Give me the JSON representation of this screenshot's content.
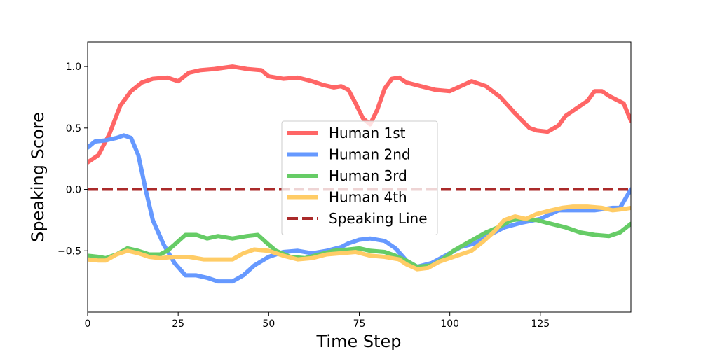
{
  "chart_data": {
    "type": "line",
    "xlabel": "Time Step",
    "ylabel": "Speaking Score",
    "xlim": [
      0,
      150
    ],
    "ylim": [
      -1.0,
      1.2
    ],
    "xticks": [
      0,
      25,
      50,
      75,
      100,
      125
    ],
    "yticks": [
      -0.5,
      0.0,
      0.5,
      1.0
    ],
    "xtick_labels": [
      "0",
      "25",
      "50",
      "75",
      "100",
      "125"
    ],
    "ytick_labels": [
      "−0.5",
      "0.0",
      "0.5",
      "1.0"
    ],
    "grid": false,
    "legend_position": "center",
    "series": [
      {
        "name": "Human 1st",
        "color": "#ff6666",
        "style": "solid",
        "points": [
          [
            0,
            0.22
          ],
          [
            3,
            0.28
          ],
          [
            6,
            0.45
          ],
          [
            9,
            0.68
          ],
          [
            12,
            0.8
          ],
          [
            15,
            0.87
          ],
          [
            18,
            0.9
          ],
          [
            22,
            0.91
          ],
          [
            25,
            0.88
          ],
          [
            28,
            0.95
          ],
          [
            31,
            0.97
          ],
          [
            35,
            0.98
          ],
          [
            40,
            1.0
          ],
          [
            44,
            0.98
          ],
          [
            48,
            0.97
          ],
          [
            50,
            0.92
          ],
          [
            54,
            0.9
          ],
          [
            58,
            0.91
          ],
          [
            62,
            0.88
          ],
          [
            65,
            0.85
          ],
          [
            68,
            0.83
          ],
          [
            70,
            0.84
          ],
          [
            72,
            0.81
          ],
          [
            74,
            0.7
          ],
          [
            76,
            0.58
          ],
          [
            78,
            0.53
          ],
          [
            80,
            0.65
          ],
          [
            82,
            0.82
          ],
          [
            84,
            0.9
          ],
          [
            86,
            0.91
          ],
          [
            88,
            0.87
          ],
          [
            92,
            0.84
          ],
          [
            96,
            0.81
          ],
          [
            100,
            0.8
          ],
          [
            103,
            0.84
          ],
          [
            106,
            0.88
          ],
          [
            110,
            0.84
          ],
          [
            114,
            0.75
          ],
          [
            118,
            0.62
          ],
          [
            122,
            0.5
          ],
          [
            124,
            0.48
          ],
          [
            127,
            0.47
          ],
          [
            130,
            0.52
          ],
          [
            132,
            0.6
          ],
          [
            135,
            0.66
          ],
          [
            138,
            0.72
          ],
          [
            140,
            0.8
          ],
          [
            142,
            0.8
          ],
          [
            144,
            0.76
          ],
          [
            148,
            0.7
          ],
          [
            150,
            0.56
          ]
        ]
      },
      {
        "name": "Human 2nd",
        "color": "#6699ff",
        "style": "solid",
        "points": [
          [
            0,
            0.34
          ],
          [
            2,
            0.39
          ],
          [
            5,
            0.4
          ],
          [
            8,
            0.42
          ],
          [
            10,
            0.44
          ],
          [
            12,
            0.42
          ],
          [
            14,
            0.28
          ],
          [
            16,
            0.0
          ],
          [
            18,
            -0.25
          ],
          [
            21,
            -0.45
          ],
          [
            24,
            -0.6
          ],
          [
            27,
            -0.7
          ],
          [
            30,
            -0.7
          ],
          [
            33,
            -0.72
          ],
          [
            36,
            -0.75
          ],
          [
            40,
            -0.75
          ],
          [
            43,
            -0.7
          ],
          [
            46,
            -0.62
          ],
          [
            50,
            -0.55
          ],
          [
            54,
            -0.51
          ],
          [
            58,
            -0.5
          ],
          [
            62,
            -0.52
          ],
          [
            66,
            -0.5
          ],
          [
            70,
            -0.47
          ],
          [
            72,
            -0.44
          ],
          [
            75,
            -0.41
          ],
          [
            78,
            -0.4
          ],
          [
            82,
            -0.42
          ],
          [
            85,
            -0.48
          ],
          [
            88,
            -0.58
          ],
          [
            91,
            -0.63
          ],
          [
            95,
            -0.6
          ],
          [
            100,
            -0.52
          ],
          [
            103,
            -0.47
          ],
          [
            107,
            -0.44
          ],
          [
            111,
            -0.37
          ],
          [
            115,
            -0.31
          ],
          [
            120,
            -0.27
          ],
          [
            125,
            -0.24
          ],
          [
            130,
            -0.17
          ],
          [
            135,
            -0.17
          ],
          [
            140,
            -0.17
          ],
          [
            145,
            -0.15
          ],
          [
            147,
            -0.15
          ],
          [
            150,
            0.0
          ]
        ]
      },
      {
        "name": "Human 3rd",
        "color": "#66cc66",
        "style": "solid",
        "points": [
          [
            0,
            -0.54
          ],
          [
            3,
            -0.55
          ],
          [
            5,
            -0.56
          ],
          [
            8,
            -0.53
          ],
          [
            11,
            -0.48
          ],
          [
            14,
            -0.5
          ],
          [
            17,
            -0.53
          ],
          [
            20,
            -0.53
          ],
          [
            22,
            -0.5
          ],
          [
            24,
            -0.45
          ],
          [
            27,
            -0.37
          ],
          [
            30,
            -0.37
          ],
          [
            33,
            -0.4
          ],
          [
            36,
            -0.38
          ],
          [
            40,
            -0.4
          ],
          [
            44,
            -0.38
          ],
          [
            47,
            -0.37
          ],
          [
            50,
            -0.45
          ],
          [
            52,
            -0.5
          ],
          [
            56,
            -0.55
          ],
          [
            60,
            -0.56
          ],
          [
            64,
            -0.53
          ],
          [
            68,
            -0.5
          ],
          [
            72,
            -0.49
          ],
          [
            75,
            -0.48
          ],
          [
            78,
            -0.5
          ],
          [
            82,
            -0.51
          ],
          [
            85,
            -0.54
          ],
          [
            88,
            -0.58
          ],
          [
            91,
            -0.63
          ],
          [
            95,
            -0.62
          ],
          [
            98,
            -0.57
          ],
          [
            101,
            -0.5
          ],
          [
            104,
            -0.45
          ],
          [
            107,
            -0.4
          ],
          [
            110,
            -0.35
          ],
          [
            114,
            -0.3
          ],
          [
            117,
            -0.25
          ],
          [
            120,
            -0.24
          ],
          [
            124,
            -0.25
          ],
          [
            128,
            -0.28
          ],
          [
            132,
            -0.31
          ],
          [
            136,
            -0.35
          ],
          [
            140,
            -0.37
          ],
          [
            144,
            -0.38
          ],
          [
            147,
            -0.35
          ],
          [
            150,
            -0.28
          ]
        ]
      },
      {
        "name": "Human 4th",
        "color": "#ffcc66",
        "style": "solid",
        "points": [
          [
            0,
            -0.57
          ],
          [
            3,
            -0.58
          ],
          [
            5,
            -0.58
          ],
          [
            8,
            -0.53
          ],
          [
            11,
            -0.5
          ],
          [
            14,
            -0.52
          ],
          [
            17,
            -0.55
          ],
          [
            20,
            -0.56
          ],
          [
            24,
            -0.55
          ],
          [
            28,
            -0.55
          ],
          [
            32,
            -0.57
          ],
          [
            36,
            -0.57
          ],
          [
            40,
            -0.57
          ],
          [
            43,
            -0.52
          ],
          [
            46,
            -0.49
          ],
          [
            50,
            -0.5
          ],
          [
            54,
            -0.54
          ],
          [
            58,
            -0.57
          ],
          [
            62,
            -0.56
          ],
          [
            66,
            -0.53
          ],
          [
            70,
            -0.52
          ],
          [
            74,
            -0.51
          ],
          [
            78,
            -0.54
          ],
          [
            82,
            -0.55
          ],
          [
            86,
            -0.57
          ],
          [
            88,
            -0.61
          ],
          [
            91,
            -0.65
          ],
          [
            94,
            -0.64
          ],
          [
            97,
            -0.59
          ],
          [
            100,
            -0.56
          ],
          [
            103,
            -0.53
          ],
          [
            106,
            -0.5
          ],
          [
            109,
            -0.43
          ],
          [
            112,
            -0.35
          ],
          [
            115,
            -0.25
          ],
          [
            118,
            -0.22
          ],
          [
            121,
            -0.24
          ],
          [
            124,
            -0.2
          ],
          [
            128,
            -0.17
          ],
          [
            131,
            -0.15
          ],
          [
            134,
            -0.14
          ],
          [
            138,
            -0.14
          ],
          [
            142,
            -0.15
          ],
          [
            145,
            -0.17
          ],
          [
            148,
            -0.16
          ],
          [
            150,
            -0.15
          ]
        ]
      },
      {
        "name": "Speaking Line",
        "color": "#aa2a2a",
        "style": "dashed",
        "points": [
          [
            0,
            0.0
          ],
          [
            150,
            0.0
          ]
        ]
      }
    ]
  }
}
